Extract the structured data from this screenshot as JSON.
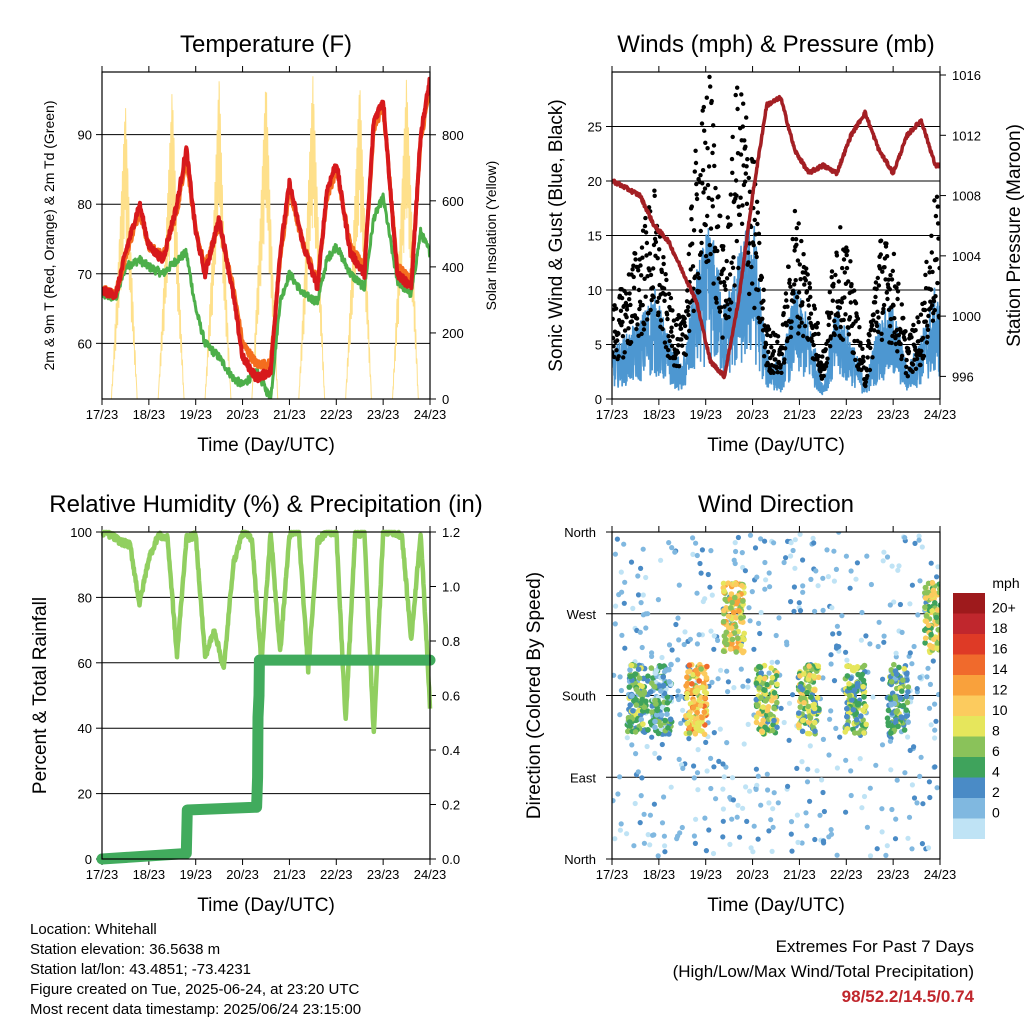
{
  "chart_data": [
    {
      "type": "line",
      "title": "Temperature (F)",
      "xlabel": "Time (Day/UTC)",
      "ylabel": "2m & 9m T (Red, Orange) & 2m Td (Green)",
      "ylabel_right": "Solar Insolation (Yellow)",
      "x_ticks": [
        "17/23",
        "18/23",
        "19/23",
        "20/23",
        "21/23",
        "22/23",
        "23/23",
        "24/23"
      ],
      "ylim": [
        52,
        99
      ],
      "y_ticks": [
        60,
        70,
        80,
        90
      ],
      "ylim_right": [
        0,
        990
      ],
      "y_ticks_right": [
        0,
        200,
        400,
        600,
        800
      ],
      "grid": true,
      "series": [
        {
          "name": "2m T",
          "color": "#d7191c",
          "x": [
            0,
            0.3,
            0.5,
            0.8,
            1.0,
            1.3,
            1.6,
            1.8,
            2.0,
            2.2,
            2.5,
            2.8,
            3.0,
            3.3,
            3.6,
            3.8,
            4.0,
            4.3,
            4.6,
            4.8,
            5.0,
            5.3,
            5.6,
            5.8,
            6.0,
            6.3,
            6.6,
            6.8,
            7.0
          ],
          "values": [
            67.5,
            67,
            73,
            80,
            74,
            72,
            80,
            88,
            76,
            70,
            78,
            67,
            58,
            55,
            56,
            73,
            83,
            74,
            68,
            82,
            86,
            73,
            70,
            92,
            95,
            70,
            68,
            90,
            98
          ]
        },
        {
          "name": "9m T",
          "color": "#f46d1e",
          "x": [
            0,
            0.3,
            0.5,
            0.8,
            1.0,
            1.3,
            1.6,
            1.8,
            2.0,
            2.2,
            2.5,
            2.8,
            3.0,
            3.3,
            3.6,
            3.8,
            4.0,
            4.3,
            4.6,
            4.8,
            5.0,
            5.3,
            5.6,
            5.8,
            6.0,
            6.3,
            6.6,
            6.8,
            7.0
          ],
          "values": [
            67.8,
            67.3,
            72.5,
            79,
            74,
            72.5,
            79,
            87,
            76,
            71,
            77,
            68,
            60,
            57,
            57,
            72,
            82,
            74,
            69,
            81,
            85,
            74,
            71,
            91,
            94,
            71,
            69,
            89,
            97
          ]
        },
        {
          "name": "2m Td",
          "color": "#4daf4a",
          "x": [
            0,
            0.3,
            0.5,
            0.8,
            1.0,
            1.3,
            1.6,
            1.8,
            2.0,
            2.2,
            2.5,
            2.8,
            3.0,
            3.3,
            3.6,
            3.8,
            4.0,
            4.3,
            4.6,
            4.8,
            5.0,
            5.3,
            5.6,
            5.8,
            6.0,
            6.3,
            6.6,
            6.8,
            7.0
          ],
          "values": [
            67,
            66.5,
            71,
            72,
            71,
            70,
            72,
            73,
            65,
            60,
            58,
            55,
            54,
            56,
            52,
            66,
            70,
            67,
            66,
            72,
            74,
            70,
            68,
            78,
            81,
            69,
            67,
            76,
            73
          ]
        },
        {
          "name": "Solar Insolation",
          "axis": "right",
          "color": "#fee08b",
          "x": [
            0.0,
            0.2,
            0.35,
            0.5,
            0.6,
            0.75,
            1.0,
            1.2,
            1.35,
            1.5,
            1.6,
            1.75,
            2.0,
            2.2,
            2.35,
            2.5,
            2.6,
            2.75,
            3.0,
            3.2,
            3.35,
            3.5,
            3.6,
            3.75,
            4.0,
            4.2,
            4.35,
            4.5,
            4.6,
            4.75,
            5.0,
            5.2,
            5.35,
            5.5,
            5.6,
            5.75,
            6.0,
            6.2,
            6.35,
            6.5,
            6.6,
            6.75,
            7.0
          ],
          "values": [
            0,
            0,
            420,
            900,
            500,
            0,
            0,
            0,
            450,
            950,
            520,
            0,
            0,
            0,
            430,
            980,
            500,
            0,
            0,
            0,
            460,
            980,
            550,
            0,
            0,
            0,
            470,
            980,
            600,
            0,
            0,
            0,
            460,
            970,
            580,
            0,
            0,
            0,
            480,
            980,
            600,
            0,
            0
          ]
        }
      ]
    },
    {
      "type": "scatter",
      "title": "Winds (mph) & Pressure (mb)",
      "xlabel": "Time (Day/UTC)",
      "ylabel": "Sonic Wind & Gust (Blue, Black)",
      "ylabel_right": "Station Pressure (Maroon)",
      "x_ticks": [
        "17/23",
        "18/23",
        "19/23",
        "20/23",
        "21/23",
        "22/23",
        "23/23",
        "24/23"
      ],
      "ylim": [
        0,
        30
      ],
      "y_ticks": [
        0,
        5,
        10,
        15,
        20,
        25
      ],
      "ylim_right": [
        994.5,
        1016.2
      ],
      "y_ticks_right": [
        996,
        1000,
        1004,
        1008,
        1012,
        1016
      ],
      "grid": true,
      "series": [
        {
          "name": "Sonic Wind",
          "color": "#4d97d1",
          "x": [
            0,
            0.3,
            0.6,
            0.9,
            1.2,
            1.5,
            1.8,
            2.1,
            2.4,
            2.7,
            3.0,
            3.3,
            3.6,
            3.9,
            4.2,
            4.5,
            4.8,
            5.1,
            5.4,
            5.7,
            6.0,
            6.3,
            6.6,
            6.9,
            7.0
          ],
          "values": [
            3,
            4,
            5,
            7,
            4,
            2,
            8,
            11,
            6,
            9,
            12,
            3,
            2,
            7,
            5,
            1,
            6,
            4,
            1,
            5,
            6,
            2,
            4,
            7,
            6
          ]
        },
        {
          "name": "Gust",
          "color": "#000000",
          "x": [
            0,
            0.3,
            0.6,
            0.9,
            1.2,
            1.5,
            1.8,
            2.1,
            2.4,
            2.7,
            3.0,
            3.3,
            3.6,
            3.9,
            4.2,
            4.5,
            4.8,
            5.1,
            5.4,
            5.7,
            6.0,
            6.3,
            6.6,
            6.9,
            7.0
          ],
          "values": [
            6,
            8,
            11,
            14,
            7,
            5,
            17,
            22,
            9,
            23,
            17,
            5,
            4,
            13,
            9,
            3,
            12,
            9,
            2,
            11,
            10,
            4,
            6,
            14,
            12
          ]
        },
        {
          "name": "Station Pressure",
          "axis": "right",
          "color": "#a31f24",
          "x": [
            0,
            0.3,
            0.6,
            0.9,
            1.2,
            1.5,
            1.8,
            2.1,
            2.4,
            2.7,
            3.0,
            3.3,
            3.6,
            3.9,
            4.2,
            4.5,
            4.8,
            5.1,
            5.4,
            5.7,
            6.0,
            6.3,
            6.6,
            6.9,
            7.0
          ],
          "values": [
            1009,
            1008.5,
            1008,
            1006,
            1005,
            1003,
            1001,
            997,
            996,
            1001,
            1008,
            1014,
            1014.5,
            1011,
            1009.5,
            1010,
            1009.5,
            1012,
            1013.5,
            1011,
            1009.5,
            1012,
            1013,
            1010,
            1010
          ]
        }
      ]
    },
    {
      "type": "line",
      "title": "Relative Humidity (%) & Precipitation (in)",
      "xlabel": "Time (Day/UTC)",
      "ylabel": "Percent & Total Rainfall",
      "x_ticks": [
        "17/23",
        "18/23",
        "19/23",
        "20/23",
        "21/23",
        "22/23",
        "23/23",
        "24/23"
      ],
      "ylim": [
        0,
        100
      ],
      "y_ticks": [
        0,
        20,
        40,
        60,
        80,
        100
      ],
      "ylim_right": [
        0,
        1.2
      ],
      "y_ticks_right": [
        "0.0",
        "0.2",
        "0.4",
        "0.6",
        "0.8",
        "1.0",
        "1.2"
      ],
      "grid": true,
      "series": [
        {
          "name": "Relative Humidity",
          "color": "#91cf60",
          "x": [
            0,
            0.2,
            0.4,
            0.6,
            0.8,
            1.0,
            1.2,
            1.4,
            1.6,
            1.8,
            2.0,
            2.2,
            2.4,
            2.6,
            2.8,
            3.0,
            3.2,
            3.4,
            3.6,
            3.8,
            4.0,
            4.2,
            4.4,
            4.6,
            4.8,
            5.0,
            5.2,
            5.4,
            5.6,
            5.8,
            6.0,
            6.2,
            6.4,
            6.6,
            6.8,
            7.0
          ],
          "values": [
            100,
            99,
            97,
            96,
            78,
            92,
            99,
            98,
            62,
            98,
            99,
            62,
            70,
            58,
            90,
            100,
            98,
            60,
            100,
            63,
            99,
            100,
            58,
            97,
            100,
            100,
            42,
            99,
            100,
            38,
            100,
            100,
            99,
            67,
            100,
            47
          ]
        },
        {
          "name": "Total Rainfall",
          "axis": "right",
          "color": "#41ab5d",
          "x": [
            0,
            1.8,
            1.82,
            3.3,
            3.32,
            3.33,
            3.35,
            3.36,
            7.0
          ],
          "values": [
            0,
            0.02,
            0.18,
            0.19,
            0.3,
            0.52,
            0.6,
            0.73,
            0.73
          ]
        }
      ]
    },
    {
      "type": "scatter",
      "title": "Wind Direction",
      "xlabel": "Time (Day/UTC)",
      "ylabel": "Direction (Colored By Speed)",
      "x_ticks": [
        "17/23",
        "18/23",
        "19/23",
        "20/23",
        "21/23",
        "22/23",
        "23/23",
        "24/23"
      ],
      "y_ticks": [
        "North",
        "East",
        "South",
        "West",
        "North"
      ],
      "grid": true,
      "colorbar": {
        "title": "mph",
        "labels": [
          "20+",
          "18",
          "16",
          "14",
          "12",
          "10",
          "8",
          "6",
          "4",
          "2",
          "0"
        ],
        "colors": [
          "#9e1a1c",
          "#c0272d",
          "#de3a26",
          "#f06a2c",
          "#f9a13c",
          "#fccb5e",
          "#e6e65c",
          "#8ac25a",
          "#3fa35c",
          "#4a8bc6",
          "#80b8e0",
          "#bfe3f5"
        ]
      },
      "clusters": [
        {
          "x": 0.55,
          "direction": "South",
          "speed": 6
        },
        {
          "x": 1.05,
          "direction": "South",
          "speed": 4
        },
        {
          "x": 1.8,
          "direction": "South",
          "speed": 12
        },
        {
          "x": 2.6,
          "direction": "West",
          "speed": 11
        },
        {
          "x": 3.3,
          "direction": "South",
          "speed": 8
        },
        {
          "x": 4.2,
          "direction": "South",
          "speed": 8
        },
        {
          "x": 5.2,
          "direction": "South",
          "speed": 7
        },
        {
          "x": 6.1,
          "direction": "South",
          "speed": 6
        },
        {
          "x": 6.9,
          "direction": "West",
          "speed": 9
        }
      ]
    }
  ],
  "footer": {
    "location": "Location: Whitehall",
    "elevation": "Station elevation: 36.5638 m",
    "latlon": "Station lat/lon: 43.4851; -73.4231",
    "created": "Figure created on Tue, 2025-06-24, at 23:20 UTC",
    "recent": "Most recent data timestamp: 2025/06/24 23:15:00"
  },
  "extremes": {
    "title": "Extremes For Past 7 Days",
    "subtitle": "(High/Low/Max Wind/Total Precipitation)",
    "values": "98/52.2/14.5/0.74"
  }
}
